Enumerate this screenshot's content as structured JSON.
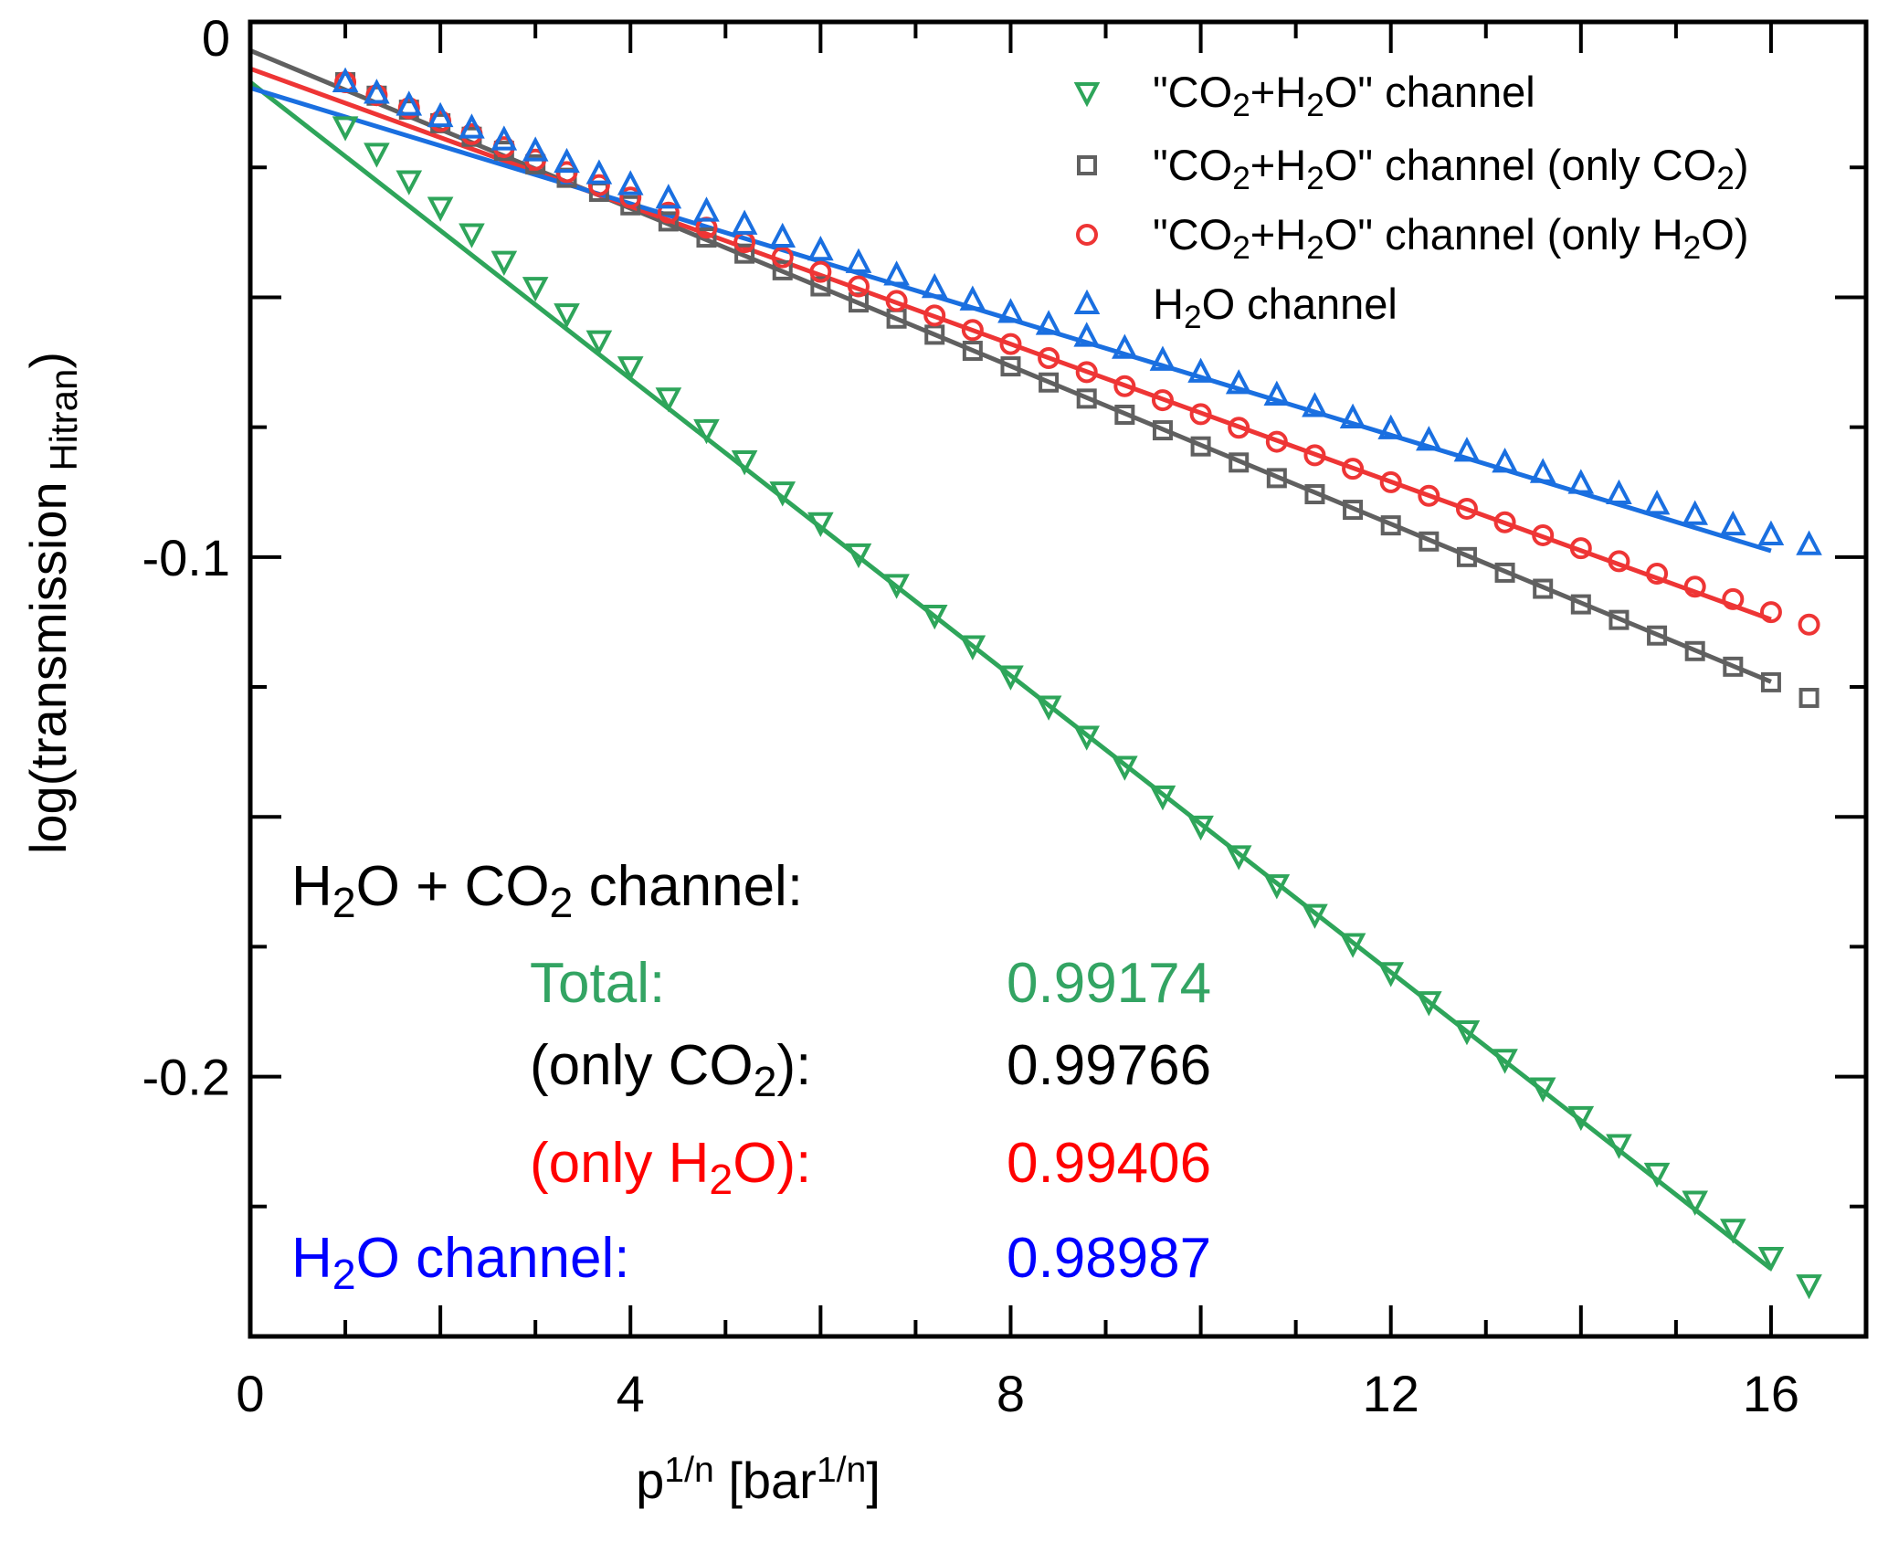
{
  "chart_data": {
    "type": "scatter",
    "xlabel_parts": [
      {
        "t": "p"
      },
      {
        "t": "1/n",
        "sup": true
      },
      {
        "t": "  [bar"
      },
      {
        "t": "1/n",
        "sup": true
      },
      {
        "t": "]"
      }
    ],
    "ylabel_parts": [
      {
        "t": "log(transmission"
      },
      {
        "t": " Hitran",
        "sub": true
      },
      {
        "t": ")"
      }
    ],
    "xlim": [
      0,
      17
    ],
    "ylim": [
      -0.25,
      0.003
    ],
    "x_ticks": [
      "0",
      "4",
      "8",
      "12",
      "16"
    ],
    "y_ticks": [
      "0",
      "-0.1",
      "-0.2"
    ],
    "x_tick_values": [
      0,
      4,
      8,
      12,
      16
    ],
    "y_tick_values": [
      0,
      -0.1,
      -0.2
    ],
    "grid": false,
    "legend_position": "top-right",
    "x": [
      1,
      1.33,
      1.67,
      2,
      2.33,
      2.67,
      3,
      3.33,
      3.67,
      4,
      4.4,
      4.8,
      5.2,
      5.6,
      6,
      6.4,
      6.8,
      7.2,
      7.6,
      8,
      8.4,
      8.8,
      9.2,
      9.6,
      10,
      10.4,
      10.8,
      11.2,
      11.6,
      12,
      12.4,
      12.8,
      13.2,
      13.6,
      14,
      14.4,
      14.8,
      15.2,
      15.6,
      16,
      16.4
    ],
    "series": [
      {
        "name": "\"CO2+H2O\" channel",
        "label_parts": [
          {
            "t": "\"CO"
          },
          {
            "t": "2",
            "sub": true
          },
          {
            "t": "+H"
          },
          {
            "t": "2",
            "sub": true
          },
          {
            "t": "O\" channel"
          }
        ],
        "marker": "triangle-down",
        "color": "#2ea55a",
        "values": [
          -0.0171,
          -0.0222,
          -0.0275,
          -0.0326,
          -0.0377,
          -0.043,
          -0.048,
          -0.0531,
          -0.0583,
          -0.0633,
          -0.0693,
          -0.0754,
          -0.0814,
          -0.0874,
          -0.0933,
          -0.0993,
          -0.1052,
          -0.1111,
          -0.117,
          -0.1228,
          -0.1286,
          -0.1344,
          -0.1402,
          -0.1459,
          -0.1517,
          -0.1574,
          -0.163,
          -0.1687,
          -0.1743,
          -0.1799,
          -0.1855,
          -0.1911,
          -0.1966,
          -0.2021,
          -0.2076,
          -0.213,
          -0.2185,
          -0.2239,
          -0.2293,
          -0.2347,
          -0.24
        ],
        "fit": {
          "x": [
            0,
            16
          ],
          "y": [
            -0.0086,
            -0.237
          ]
        }
      },
      {
        "name": "\"CO2+H2O\" channel (only CO2)",
        "label_parts": [
          {
            "t": "\"CO"
          },
          {
            "t": "2",
            "sub": true
          },
          {
            "t": "+H"
          },
          {
            "t": "2",
            "sub": true
          },
          {
            "t": "O\" channel (only CO"
          },
          {
            "t": "2",
            "sub": true
          },
          {
            "t": ")"
          }
        ],
        "marker": "square",
        "color": "#606060",
        "values": [
          -0.0086,
          -0.0112,
          -0.0139,
          -0.0165,
          -0.0191,
          -0.0218,
          -0.0244,
          -0.027,
          -0.0297,
          -0.0323,
          -0.0354,
          -0.0385,
          -0.0416,
          -0.0448,
          -0.0479,
          -0.051,
          -0.0541,
          -0.0572,
          -0.0603,
          -0.0633,
          -0.0664,
          -0.0695,
          -0.0726,
          -0.0756,
          -0.0787,
          -0.0818,
          -0.0848,
          -0.0879,
          -0.0909,
          -0.0939,
          -0.097,
          -0.1,
          -0.103,
          -0.1061,
          -0.1091,
          -0.1121,
          -0.1151,
          -0.1181,
          -0.1211,
          -0.1241,
          -0.1271
        ],
        "fit": {
          "x": [
            0,
            16
          ],
          "y": [
            -0.0025,
            -0.124
          ]
        }
      },
      {
        "name": "\"CO2+H2O\" channel (only H2O)",
        "label_parts": [
          {
            "t": "\"CO"
          },
          {
            "t": "2",
            "sub": true
          },
          {
            "t": "+H"
          },
          {
            "t": "2",
            "sub": true
          },
          {
            "t": "O\" channel (only H"
          },
          {
            "t": "2",
            "sub": true
          },
          {
            "t": "O)"
          }
        ],
        "marker": "circle",
        "color": "#ee3535",
        "values": [
          -0.0086,
          -0.0111,
          -0.0136,
          -0.0161,
          -0.0186,
          -0.0211,
          -0.0235,
          -0.0259,
          -0.0284,
          -0.0308,
          -0.0337,
          -0.0366,
          -0.0394,
          -0.0423,
          -0.0451,
          -0.0479,
          -0.0507,
          -0.0535,
          -0.0563,
          -0.059,
          -0.0617,
          -0.0644,
          -0.0671,
          -0.0698,
          -0.0725,
          -0.0751,
          -0.0778,
          -0.0804,
          -0.083,
          -0.0856,
          -0.0882,
          -0.0907,
          -0.0933,
          -0.0958,
          -0.0983,
          -0.1008,
          -0.1032,
          -0.1057,
          -0.1081,
          -0.1106,
          -0.113
        ],
        "fit": {
          "x": [
            0,
            16
          ],
          "y": [
            -0.006,
            -0.112
          ]
        }
      },
      {
        "name": "H2O channel",
        "label_parts": [
          {
            "t": "H"
          },
          {
            "t": "2",
            "sub": true
          },
          {
            "t": "O channel"
          }
        ],
        "marker": "triangle-up",
        "color": "#1a6fe0",
        "values": [
          -0.0086,
          -0.0108,
          -0.0131,
          -0.0153,
          -0.0175,
          -0.0198,
          -0.0219,
          -0.0241,
          -0.0263,
          -0.0284,
          -0.031,
          -0.0335,
          -0.036,
          -0.0385,
          -0.041,
          -0.0434,
          -0.0458,
          -0.0482,
          -0.0506,
          -0.053,
          -0.0553,
          -0.0576,
          -0.0599,
          -0.0622,
          -0.0645,
          -0.0667,
          -0.0689,
          -0.0711,
          -0.0733,
          -0.0754,
          -0.0776,
          -0.0797,
          -0.0818,
          -0.0838,
          -0.0859,
          -0.0879,
          -0.0899,
          -0.0919,
          -0.0939,
          -0.0958,
          -0.0977
        ],
        "fit": {
          "x": [
            0,
            16
          ],
          "y": [
            -0.0097,
            -0.0988
          ]
        }
      }
    ],
    "annotations": {
      "heading_parts": [
        {
          "t": "H"
        },
        {
          "t": "2",
          "sub": true
        },
        {
          "t": "O + CO"
        },
        {
          "t": "2",
          "sub": true
        },
        {
          "t": " channel:"
        }
      ],
      "rows": [
        {
          "label_parts": [
            {
              "t": "Total:"
            }
          ],
          "value": "0.99174",
          "color": "#33a463"
        },
        {
          "label_parts": [
            {
              "t": "(only CO"
            },
            {
              "t": "2",
              "sub": true
            },
            {
              "t": "):"
            }
          ],
          "value": "0.99766",
          "color": "#000000"
        },
        {
          "label_parts": [
            {
              "t": "(only H"
            },
            {
              "t": "2",
              "sub": true
            },
            {
              "t": "O):"
            }
          ],
          "value": "0.99406",
          "color": "#ff0000"
        },
        {
          "label_parts": [
            {
              "t": "H"
            },
            {
              "t": "2",
              "sub": true
            },
            {
              "t": "O channel:"
            }
          ],
          "value": "0.98987",
          "color": "#0000ff"
        }
      ]
    }
  }
}
